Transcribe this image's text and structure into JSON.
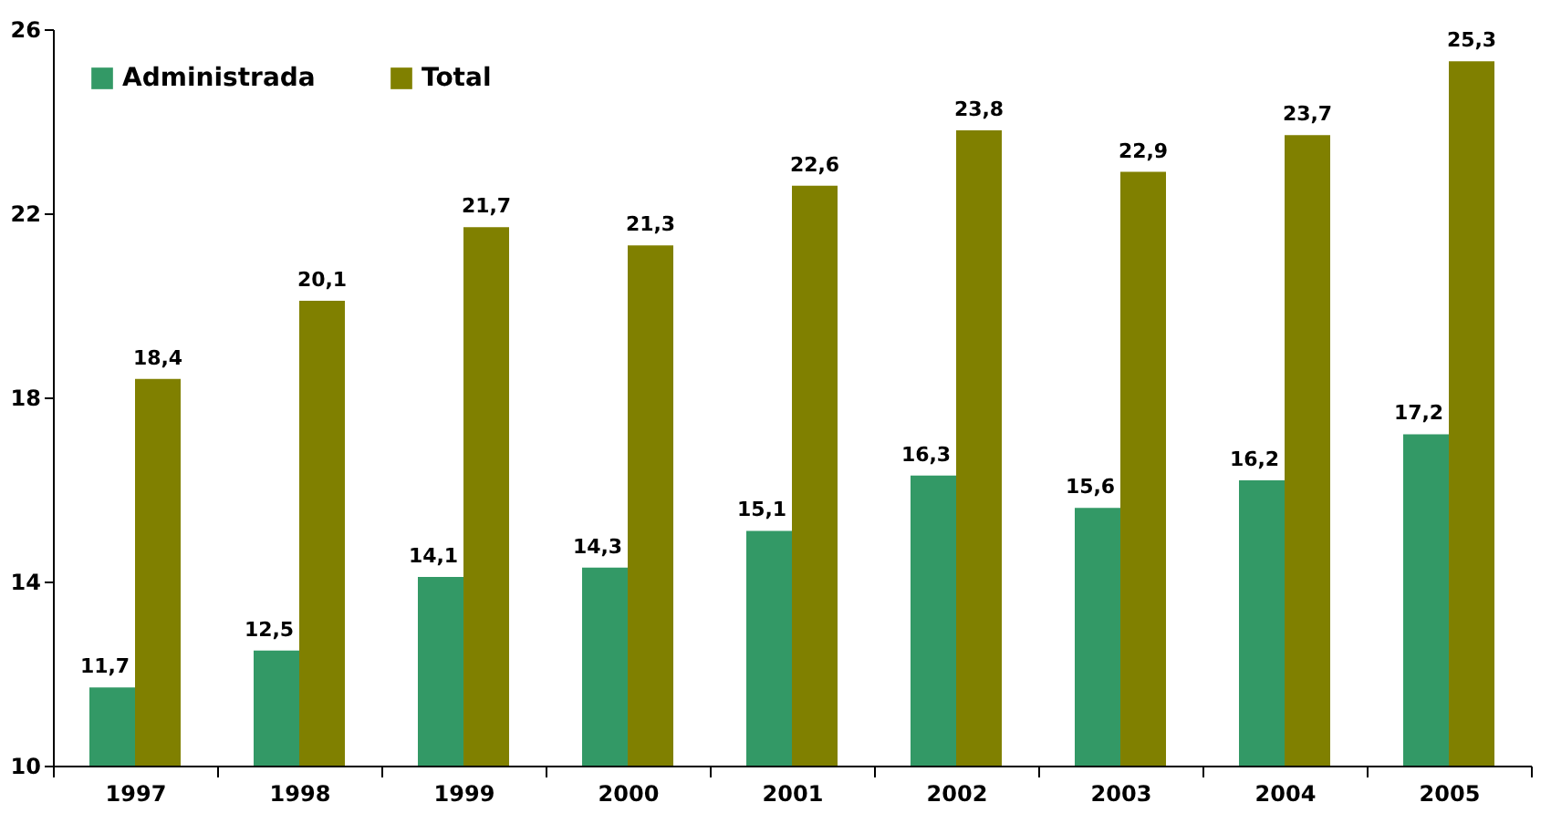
{
  "chart_data": {
    "type": "bar",
    "categories": [
      "1997",
      "1998",
      "1999",
      "2000",
      "2001",
      "2002",
      "2003",
      "2004",
      "2005"
    ],
    "series": [
      {
        "name": "Administrada",
        "color": "#339966",
        "values": [
          11.7,
          12.5,
          14.1,
          14.3,
          15.1,
          16.3,
          15.6,
          16.2,
          17.2
        ],
        "value_labels": [
          "11,7",
          "12,5",
          "14,1",
          "14,3",
          "15,1",
          "16,3",
          "15,6",
          "16,2",
          "17,2"
        ]
      },
      {
        "name": "Total",
        "color": "#808000",
        "values": [
          18.4,
          20.1,
          21.7,
          21.3,
          22.6,
          23.8,
          22.9,
          23.7,
          25.3
        ],
        "value_labels": [
          "18,4",
          "20,1",
          "21,7",
          "21,3",
          "22,6",
          "23,8",
          "22,9",
          "23,7",
          "25,3"
        ]
      }
    ],
    "ylim": [
      10,
      26
    ],
    "yticks": [
      10,
      14,
      18,
      22,
      26
    ],
    "grid": false,
    "legend": "top left"
  }
}
